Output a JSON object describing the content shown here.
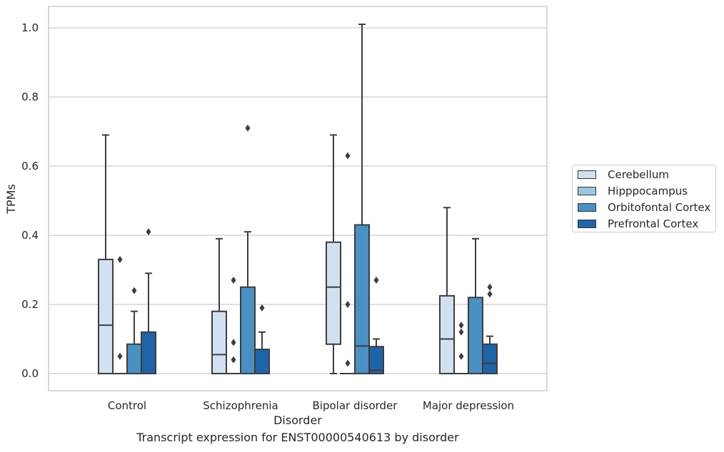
{
  "caption": "Transcript expression for ENST00000540613 by disorder",
  "chart_data": {
    "type": "box",
    "title": "",
    "xlabel": "Disorder",
    "ylabel": "TPMs",
    "ylim": [
      -0.05,
      1.06
    ],
    "yticks": [
      "0.0",
      "0.2",
      "0.4",
      "0.6",
      "0.8",
      "1.0"
    ],
    "grid": "horizontal",
    "legend_position": "right",
    "categories": [
      "Control",
      "Schizophrenia",
      "Bipolar disorder",
      "Major depression"
    ],
    "series": [
      {
        "name": "Cerebellum",
        "color": "#d1e1f1",
        "boxes": [
          {
            "min": 0,
            "q1": 0,
            "median": 0.14,
            "q3": 0.33,
            "max": 0.69,
            "outliers": []
          },
          {
            "min": 0,
            "q1": 0,
            "median": 0.055,
            "q3": 0.18,
            "max": 0.39,
            "outliers": []
          },
          {
            "min": 0,
            "q1": 0.085,
            "median": 0.25,
            "q3": 0.38,
            "max": 0.69,
            "outliers": []
          },
          {
            "min": 0,
            "q1": 0,
            "median": 0.1,
            "q3": 0.225,
            "max": 0.48,
            "outliers": []
          }
        ]
      },
      {
        "name": "Hipppocampus",
        "color": "#9cc6e0",
        "boxes": [
          {
            "min": 0,
            "q1": 0,
            "median": 0,
            "q3": 0,
            "max": 0,
            "outliers": [
              0.05,
              0.33
            ]
          },
          {
            "min": 0,
            "q1": 0,
            "median": 0,
            "q3": 0,
            "max": 0,
            "outliers": [
              0.04,
              0.09,
              0.27
            ]
          },
          {
            "min": 0,
            "q1": 0,
            "median": 0,
            "q3": 0,
            "max": 0,
            "outliers": [
              0.03,
              0.2,
              0.63
            ]
          },
          {
            "min": 0,
            "q1": 0,
            "median": 0,
            "q3": 0,
            "max": 0,
            "outliers": [
              0.05,
              0.12,
              0.14
            ]
          }
        ]
      },
      {
        "name": "Orbitofontal Cortex",
        "color": "#4a90c2",
        "boxes": [
          {
            "min": 0,
            "q1": 0,
            "median": 0,
            "q3": 0.085,
            "max": 0.18,
            "outliers": [
              0.24
            ]
          },
          {
            "min": 0,
            "q1": 0,
            "median": 0,
            "q3": 0.25,
            "max": 0.41,
            "outliers": [
              0.71
            ]
          },
          {
            "min": 0,
            "q1": 0,
            "median": 0.08,
            "q3": 0.43,
            "max": 1.01,
            "outliers": []
          },
          {
            "min": 0,
            "q1": 0,
            "median": 0,
            "q3": 0.22,
            "max": 0.39,
            "outliers": []
          }
        ]
      },
      {
        "name": "Prefrontal Cortex",
        "color": "#1f63a8",
        "boxes": [
          {
            "min": 0,
            "q1": 0,
            "median": 0,
            "q3": 0.12,
            "max": 0.29,
            "outliers": [
              0.41
            ]
          },
          {
            "min": 0,
            "q1": 0,
            "median": 0,
            "q3": 0.07,
            "max": 0.12,
            "outliers": [
              0.19
            ]
          },
          {
            "min": 0,
            "q1": 0,
            "median": 0.01,
            "q3": 0.078,
            "max": 0.1,
            "outliers": [
              0.27
            ]
          },
          {
            "min": 0,
            "q1": 0,
            "median": 0.03,
            "q3": 0.085,
            "max": 0.108,
            "outliers": [
              0.23,
              0.25
            ]
          }
        ]
      }
    ]
  }
}
